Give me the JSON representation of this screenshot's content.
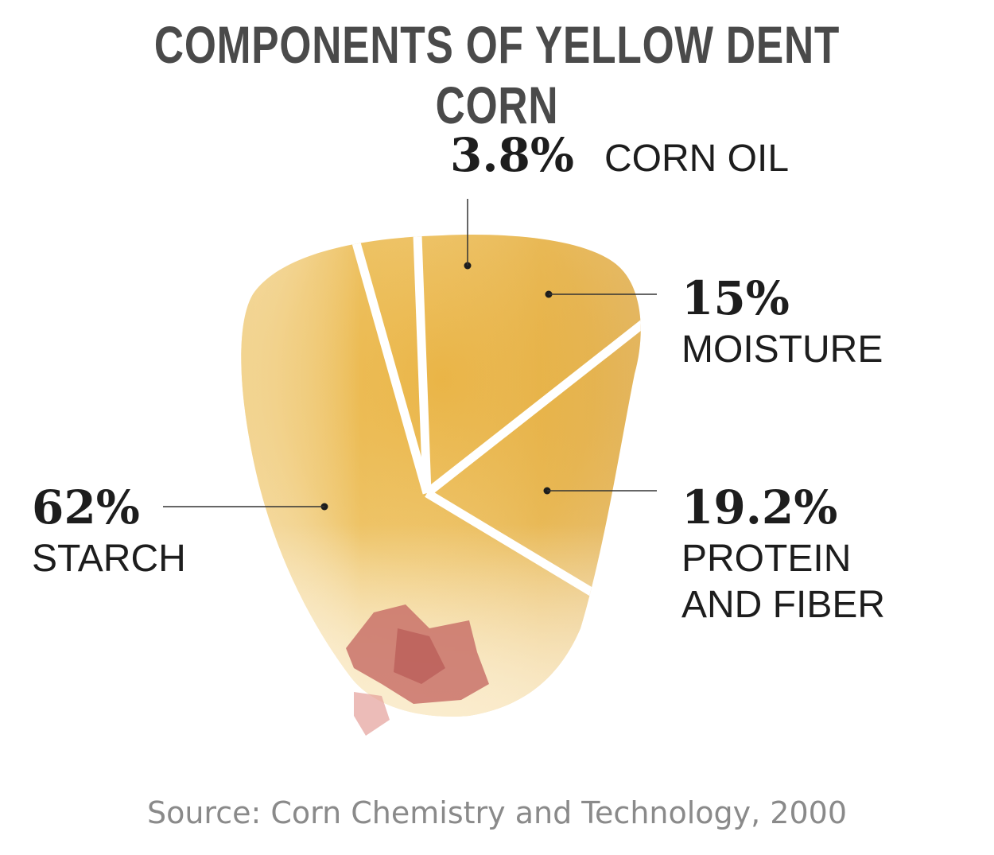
{
  "chart_data": {
    "type": "pie",
    "title": "COMPONENTS OF YELLOW DENT CORN",
    "slices": [
      {
        "value_label": "3.8%",
        "label_lines": [
          "CORN OIL"
        ],
        "value": 3.8
      },
      {
        "value_label": "15%",
        "label_lines": [
          "MOISTURE"
        ],
        "value": 15
      },
      {
        "value_label": "19.2%",
        "label_lines": [
          "PROTEIN",
          "AND FIBER"
        ],
        "value": 19.2
      },
      {
        "value_label": "62%",
        "label_lines": [
          "STARCH"
        ],
        "value": 62
      }
    ],
    "source": "Source: Corn Chemistry and Technology, 2000"
  },
  "colors": {
    "kernel_light": "#f6dc9c",
    "kernel_mid": "#e8b03a",
    "kernel_dark": "#d99a25",
    "tip": "#c9726a",
    "separator": "#ffffff",
    "title": "#4a4a4a",
    "source": "#8a8a8a"
  }
}
